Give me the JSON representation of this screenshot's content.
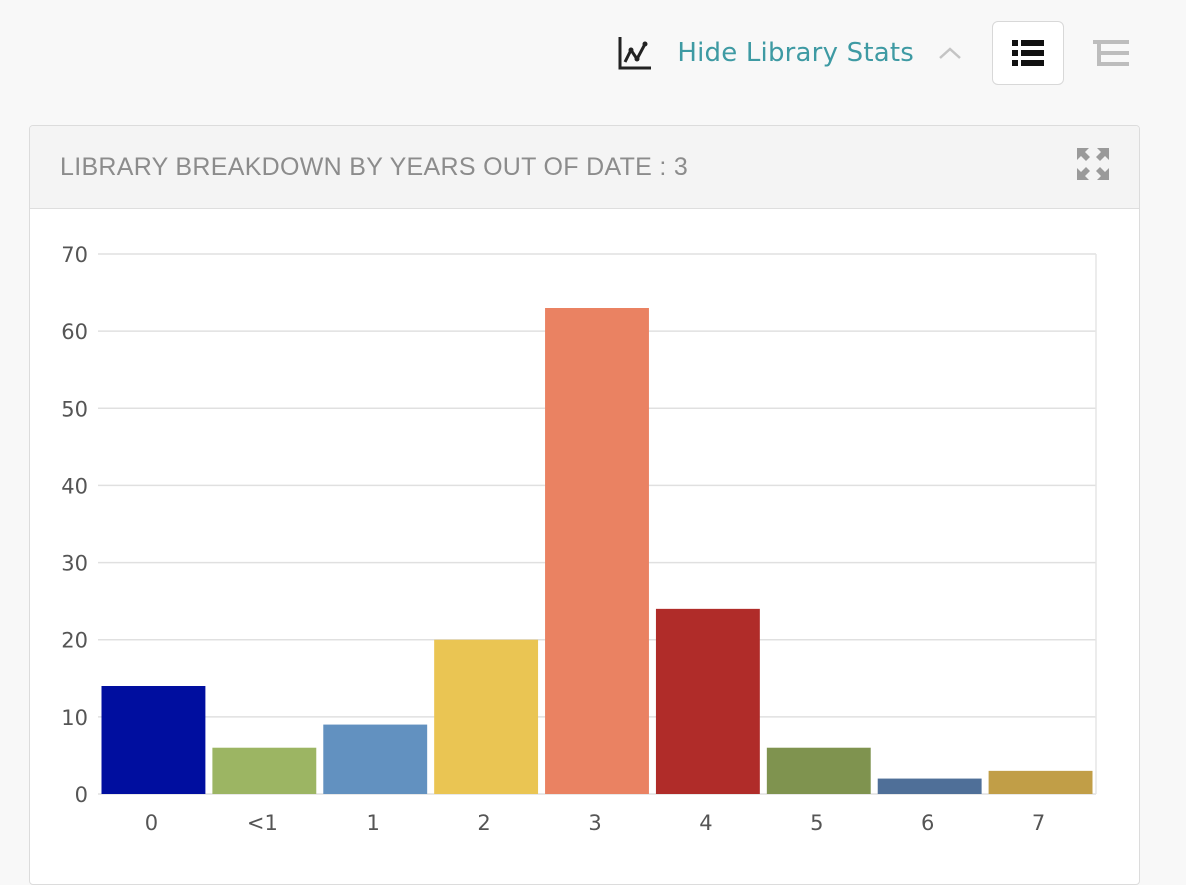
{
  "toolbar": {
    "stats_icon": "line-chart-icon",
    "toggle_label": "Hide Library Stats",
    "chevron_icon": "chevron-up-icon",
    "list_view_icon": "list-view-icon",
    "tree_view_icon": "tree-view-icon"
  },
  "panel": {
    "title": "LIBRARY BREAKDOWN BY YEARS OUT OF DATE : 3",
    "expand_icon": "expand-icon"
  },
  "chart_data": {
    "type": "bar",
    "title": "",
    "xlabel": "",
    "ylabel": "",
    "categories": [
      "0",
      "<1",
      "1",
      "2",
      "3",
      "4",
      "5",
      "6",
      "7"
    ],
    "values": [
      14,
      6,
      9,
      20,
      63,
      24,
      6,
      2,
      3
    ],
    "colors": [
      "#000e9f",
      "#9cb563",
      "#6291c0",
      "#eac553",
      "#ea8262",
      "#b02c29",
      "#7f934f",
      "#4f6f98",
      "#c19e47"
    ],
    "ylim": [
      0,
      70
    ],
    "yticks": [
      0,
      10,
      20,
      30,
      40,
      50,
      60,
      70
    ],
    "grid": true,
    "legend": "none"
  }
}
